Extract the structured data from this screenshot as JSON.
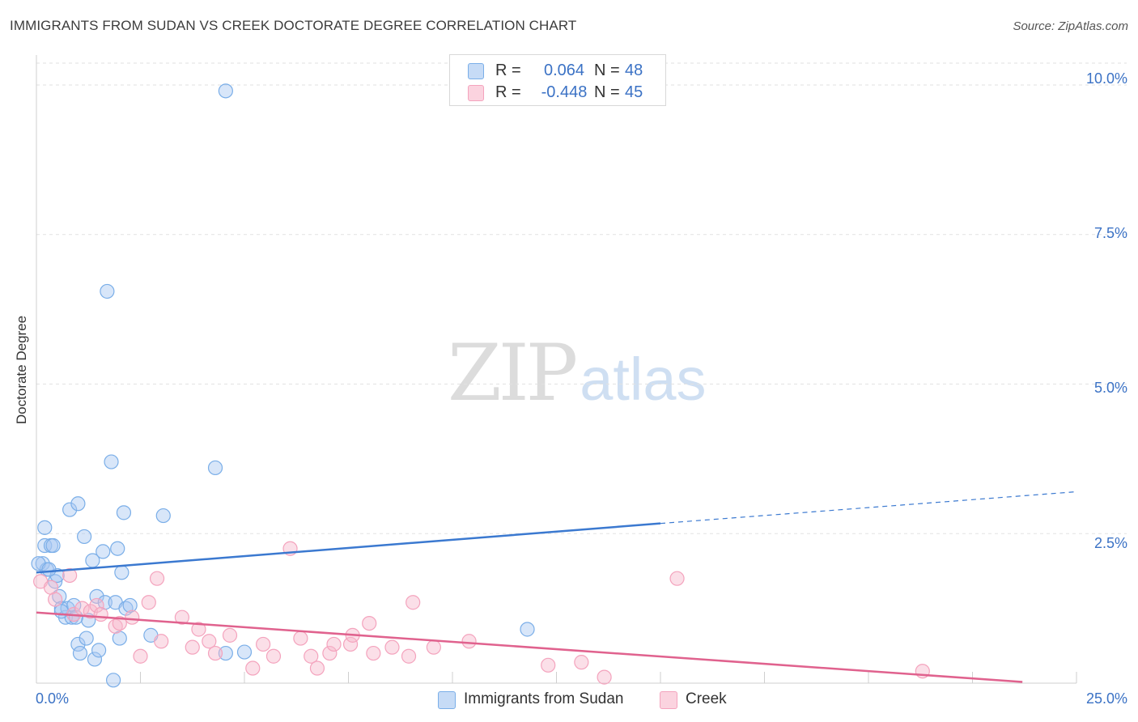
{
  "title": "IMMIGRANTS FROM SUDAN VS CREEK DOCTORATE DEGREE CORRELATION CHART",
  "source": "Source: ZipAtlas.com",
  "watermark": {
    "part1": "ZIP",
    "part2": "atlas"
  },
  "legend": {
    "rows": [
      {
        "r_label": "R =",
        "r_value": "0.064",
        "n_label": "N =",
        "n_value": "48",
        "color": "#a9c8f2"
      },
      {
        "r_label": "R =",
        "r_value": "-0.448",
        "n_label": "N =",
        "n_value": "45",
        "color": "#f6b9cc"
      }
    ]
  },
  "bottom_legend": [
    {
      "label": "Immigrants from Sudan",
      "color": "#a9c8f2"
    },
    {
      "label": "Creek",
      "color": "#f6b9cc"
    }
  ],
  "chart_data": {
    "type": "scatter",
    "title": "IMMIGRANTS FROM SUDAN VS CREEK DOCTORATE DEGREE CORRELATION CHART",
    "ylabel": "Doctorate Degree",
    "xlabel": "",
    "xlim": [
      0,
      25
    ],
    "ylim": [
      0,
      10.5
    ],
    "x_tick_labels": [
      "0.0%",
      "25.0%"
    ],
    "y_ticks": [
      2.5,
      5.0,
      7.5,
      10.0
    ],
    "y_tick_labels": [
      "2.5%",
      "5.0%",
      "7.5%",
      "10.0%"
    ],
    "grid": true,
    "series": [
      {
        "name": "Immigrants from Sudan",
        "color": "#7aaee8",
        "line_color": "#3b79d0",
        "points": [
          [
            0.15,
            2.0
          ],
          [
            0.2,
            2.3
          ],
          [
            0.25,
            1.9
          ],
          [
            0.2,
            2.6
          ],
          [
            0.35,
            2.3
          ],
          [
            0.4,
            2.3
          ],
          [
            0.45,
            1.7
          ],
          [
            0.5,
            1.8
          ],
          [
            0.55,
            1.45
          ],
          [
            0.6,
            1.25
          ],
          [
            0.7,
            1.1
          ],
          [
            0.75,
            1.25
          ],
          [
            0.8,
            2.9
          ],
          [
            0.85,
            1.1
          ],
          [
            0.9,
            1.3
          ],
          [
            1.0,
            3.0
          ],
          [
            1.0,
            0.65
          ],
          [
            1.05,
            0.5
          ],
          [
            1.15,
            2.45
          ],
          [
            1.2,
            0.75
          ],
          [
            1.25,
            1.05
          ],
          [
            1.35,
            2.05
          ],
          [
            1.4,
            0.4
          ],
          [
            1.45,
            1.45
          ],
          [
            1.5,
            0.55
          ],
          [
            1.6,
            2.2
          ],
          [
            1.65,
            1.35
          ],
          [
            1.7,
            6.55
          ],
          [
            1.8,
            3.7
          ],
          [
            1.85,
            0.05
          ],
          [
            1.9,
            1.35
          ],
          [
            1.95,
            2.25
          ],
          [
            2.0,
            0.75
          ],
          [
            2.05,
            1.85
          ],
          [
            2.1,
            2.85
          ],
          [
            2.15,
            1.25
          ],
          [
            2.25,
            1.3
          ],
          [
            2.75,
            0.8
          ],
          [
            3.05,
            2.8
          ],
          [
            4.3,
            3.6
          ],
          [
            4.55,
            0.5
          ],
          [
            4.55,
            9.9
          ],
          [
            5.0,
            0.52
          ],
          [
            11.8,
            0.9
          ],
          [
            0.05,
            2.0
          ],
          [
            0.3,
            1.9
          ],
          [
            0.6,
            1.2
          ],
          [
            0.95,
            1.1
          ]
        ],
        "trend": {
          "x0": 0,
          "y0": 1.85,
          "x1": 15,
          "y1": 2.67,
          "dash_x1": 25,
          "dash_y1": 3.2
        }
      },
      {
        "name": "Creek",
        "color": "#f4a3bd",
        "line_color": "#e0628e",
        "points": [
          [
            0.1,
            1.7
          ],
          [
            0.35,
            1.6
          ],
          [
            0.8,
            1.8
          ],
          [
            0.9,
            1.15
          ],
          [
            1.1,
            1.25
          ],
          [
            1.3,
            1.2
          ],
          [
            1.45,
            1.3
          ],
          [
            1.55,
            1.15
          ],
          [
            1.9,
            0.95
          ],
          [
            2.0,
            1.0
          ],
          [
            2.3,
            1.1
          ],
          [
            2.5,
            0.45
          ],
          [
            2.7,
            1.35
          ],
          [
            2.9,
            1.75
          ],
          [
            3.0,
            0.7
          ],
          [
            3.5,
            1.1
          ],
          [
            3.75,
            0.6
          ],
          [
            3.9,
            0.9
          ],
          [
            4.15,
            0.7
          ],
          [
            4.3,
            0.5
          ],
          [
            4.65,
            0.8
          ],
          [
            5.2,
            0.25
          ],
          [
            5.45,
            0.65
          ],
          [
            5.7,
            0.45
          ],
          [
            6.1,
            2.25
          ],
          [
            6.35,
            0.75
          ],
          [
            6.6,
            0.45
          ],
          [
            6.75,
            0.25
          ],
          [
            7.05,
            0.5
          ],
          [
            7.15,
            0.65
          ],
          [
            7.55,
            0.65
          ],
          [
            7.6,
            0.8
          ],
          [
            8.0,
            1.0
          ],
          [
            8.1,
            0.5
          ],
          [
            8.55,
            0.6
          ],
          [
            8.95,
            0.45
          ],
          [
            9.05,
            1.35
          ],
          [
            9.55,
            0.6
          ],
          [
            10.4,
            0.7
          ],
          [
            12.3,
            0.3
          ],
          [
            13.1,
            0.35
          ],
          [
            13.65,
            0.1
          ],
          [
            15.4,
            1.75
          ],
          [
            21.3,
            0.2
          ],
          [
            0.45,
            1.4
          ]
        ],
        "trend": {
          "x0": 0,
          "y0": 1.18,
          "x1": 23.7,
          "y1": 0.02
        }
      }
    ]
  }
}
